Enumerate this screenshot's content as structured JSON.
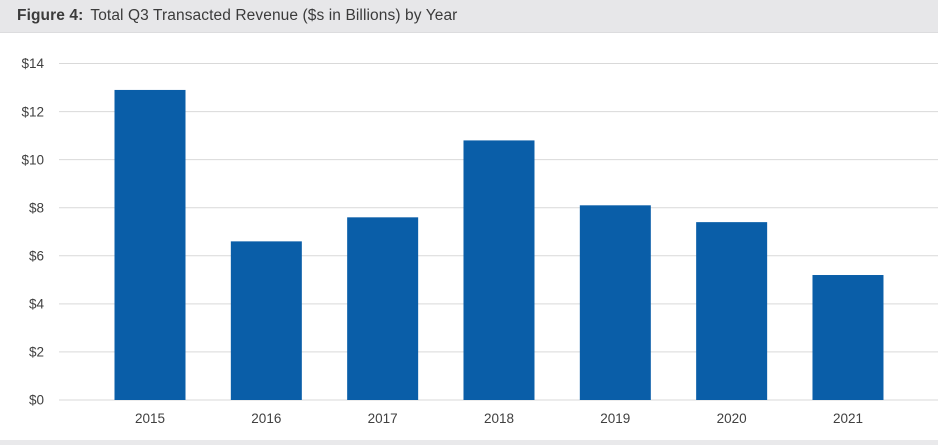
{
  "header": {
    "figure_label": "Figure 4:",
    "title": "Total Q3 Transacted Revenue ($s in Billions) by Year"
  },
  "chart_data": {
    "type": "bar",
    "title": "Figure 4: Total Q3 Transacted Revenue ($s in Billions) by Year",
    "categories": [
      "2015",
      "2016",
      "2017",
      "2018",
      "2019",
      "2020",
      "2021"
    ],
    "values": [
      12.9,
      6.6,
      7.6,
      10.8,
      8.1,
      7.4,
      5.2
    ],
    "xlabel": "",
    "ylabel": "",
    "ylim": [
      0,
      14
    ],
    "y_ticks": [
      {
        "label": "$0",
        "value": 0
      },
      {
        "label": "$2",
        "value": 2
      },
      {
        "label": "$4",
        "value": 4
      },
      {
        "label": "$6",
        "value": 6
      },
      {
        "label": "$8",
        "value": 8
      },
      {
        "label": "$10",
        "value": 10
      },
      {
        "label": "$12",
        "value": 12
      },
      {
        "label": "$14",
        "value": 14
      }
    ],
    "grid": true,
    "legend_position": "none",
    "colors": {
      "bar": "#0a5ea8",
      "gridline": "#d9d9d9",
      "tick_text": "#404040",
      "header_bg": "#e7e7e9",
      "plot_bg": "#ffffff"
    }
  }
}
